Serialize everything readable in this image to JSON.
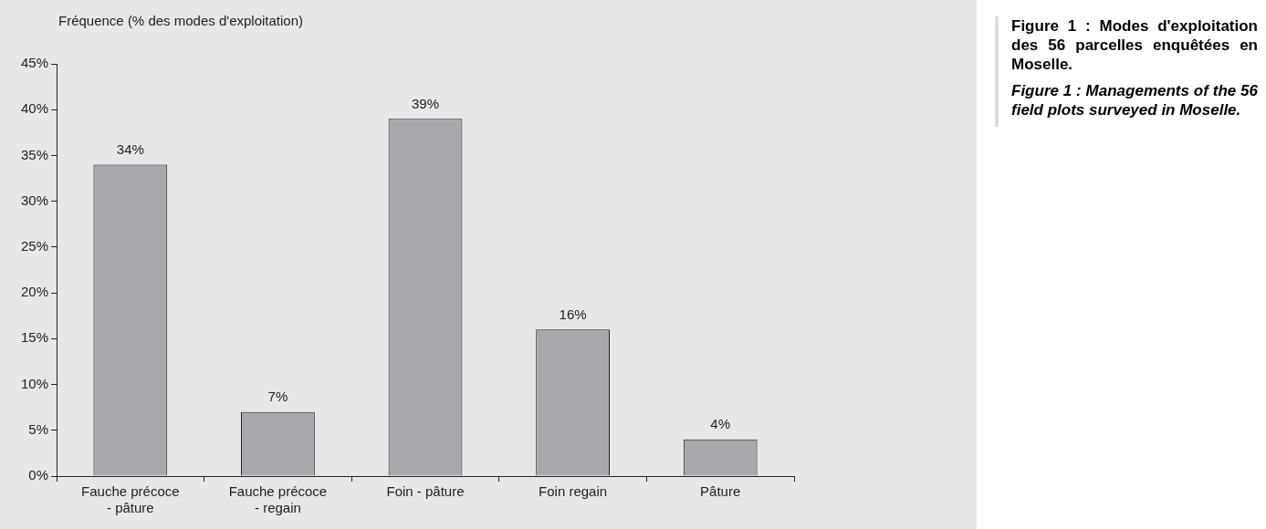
{
  "chart_data": {
    "type": "bar",
    "ylabel": "Fréquence (% des modes d'exploitation)",
    "categories": [
      "Fauche précoce - pâture",
      "Fauche précoce - regain",
      "Foin - pâture",
      "Foin regain",
      "Pâture"
    ],
    "values": [
      34,
      7,
      39,
      16,
      4
    ],
    "value_labels": [
      "34%",
      "7%",
      "39%",
      "16%",
      "4%"
    ],
    "color": "#a7a8ac",
    "ylim": [
      0,
      45
    ],
    "yticks": [
      {
        "value": 0,
        "label": "0%"
      },
      {
        "value": 5,
        "label": "5%"
      },
      {
        "value": 10,
        "label": "10%"
      },
      {
        "value": 15,
        "label": "15%"
      },
      {
        "value": 20,
        "label": "20%"
      },
      {
        "value": 25,
        "label": "25%"
      },
      {
        "value": 30,
        "label": "30%"
      },
      {
        "value": 35,
        "label": "35%"
      },
      {
        "value": 40,
        "label": "40%"
      },
      {
        "value": 45,
        "label": "45%"
      }
    ],
    "grid": false,
    "legend": false,
    "annotations": [
      "Figure 1 : Modes d'exploitation des 56 parcelles enquêtées en Moselle.",
      "Figure 1 : Managements of the 56 field plots surveyed in Moselle."
    ]
  }
}
